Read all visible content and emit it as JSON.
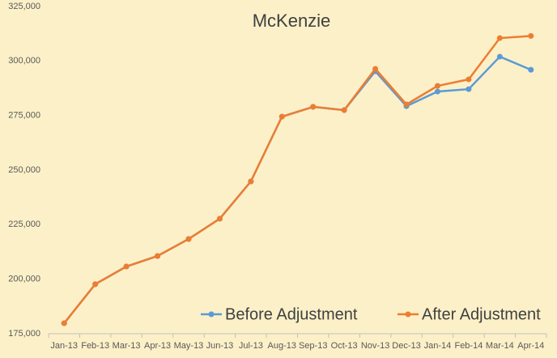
{
  "chart_data": {
    "type": "line",
    "title": "McKenzie",
    "categories": [
      "Jan-13",
      "Feb-13",
      "Mar-13",
      "Apr-13",
      "May-13",
      "Jun-13",
      "Jul-13",
      "Aug-13",
      "Sep-13",
      "Oct-13",
      "Nov-13",
      "Dec-13",
      "Jan-14",
      "Feb-14",
      "Mar-14",
      "Apr-14"
    ],
    "series": [
      {
        "name": "Before Adjustment",
        "color": "#5b9bd5",
        "values": [
          179800,
          197700,
          205800,
          210600,
          218400,
          227700,
          244800,
          274500,
          279000,
          277500,
          295300,
          279300,
          286000,
          287100,
          302000,
          296000
        ]
      },
      {
        "name": "After Adjustment",
        "color": "#ed7d31",
        "values": [
          179800,
          197700,
          205800,
          210600,
          218400,
          227700,
          244800,
          274500,
          279000,
          277500,
          296400,
          280100,
          288600,
          291600,
          310500,
          311500
        ]
      }
    ],
    "ylim": [
      175000,
      325000
    ],
    "yticks": [
      {
        "value": 175000,
        "label": "175,000"
      },
      {
        "value": 200000,
        "label": "200,000"
      },
      {
        "value": 225000,
        "label": "225,000"
      },
      {
        "value": 250000,
        "label": "250,000"
      },
      {
        "value": 275000,
        "label": "275,000"
      },
      {
        "value": 300000,
        "label": "300,000"
      },
      {
        "value": 325000,
        "label": "325,000"
      }
    ],
    "legend": "bottom-right",
    "grid": false
  }
}
